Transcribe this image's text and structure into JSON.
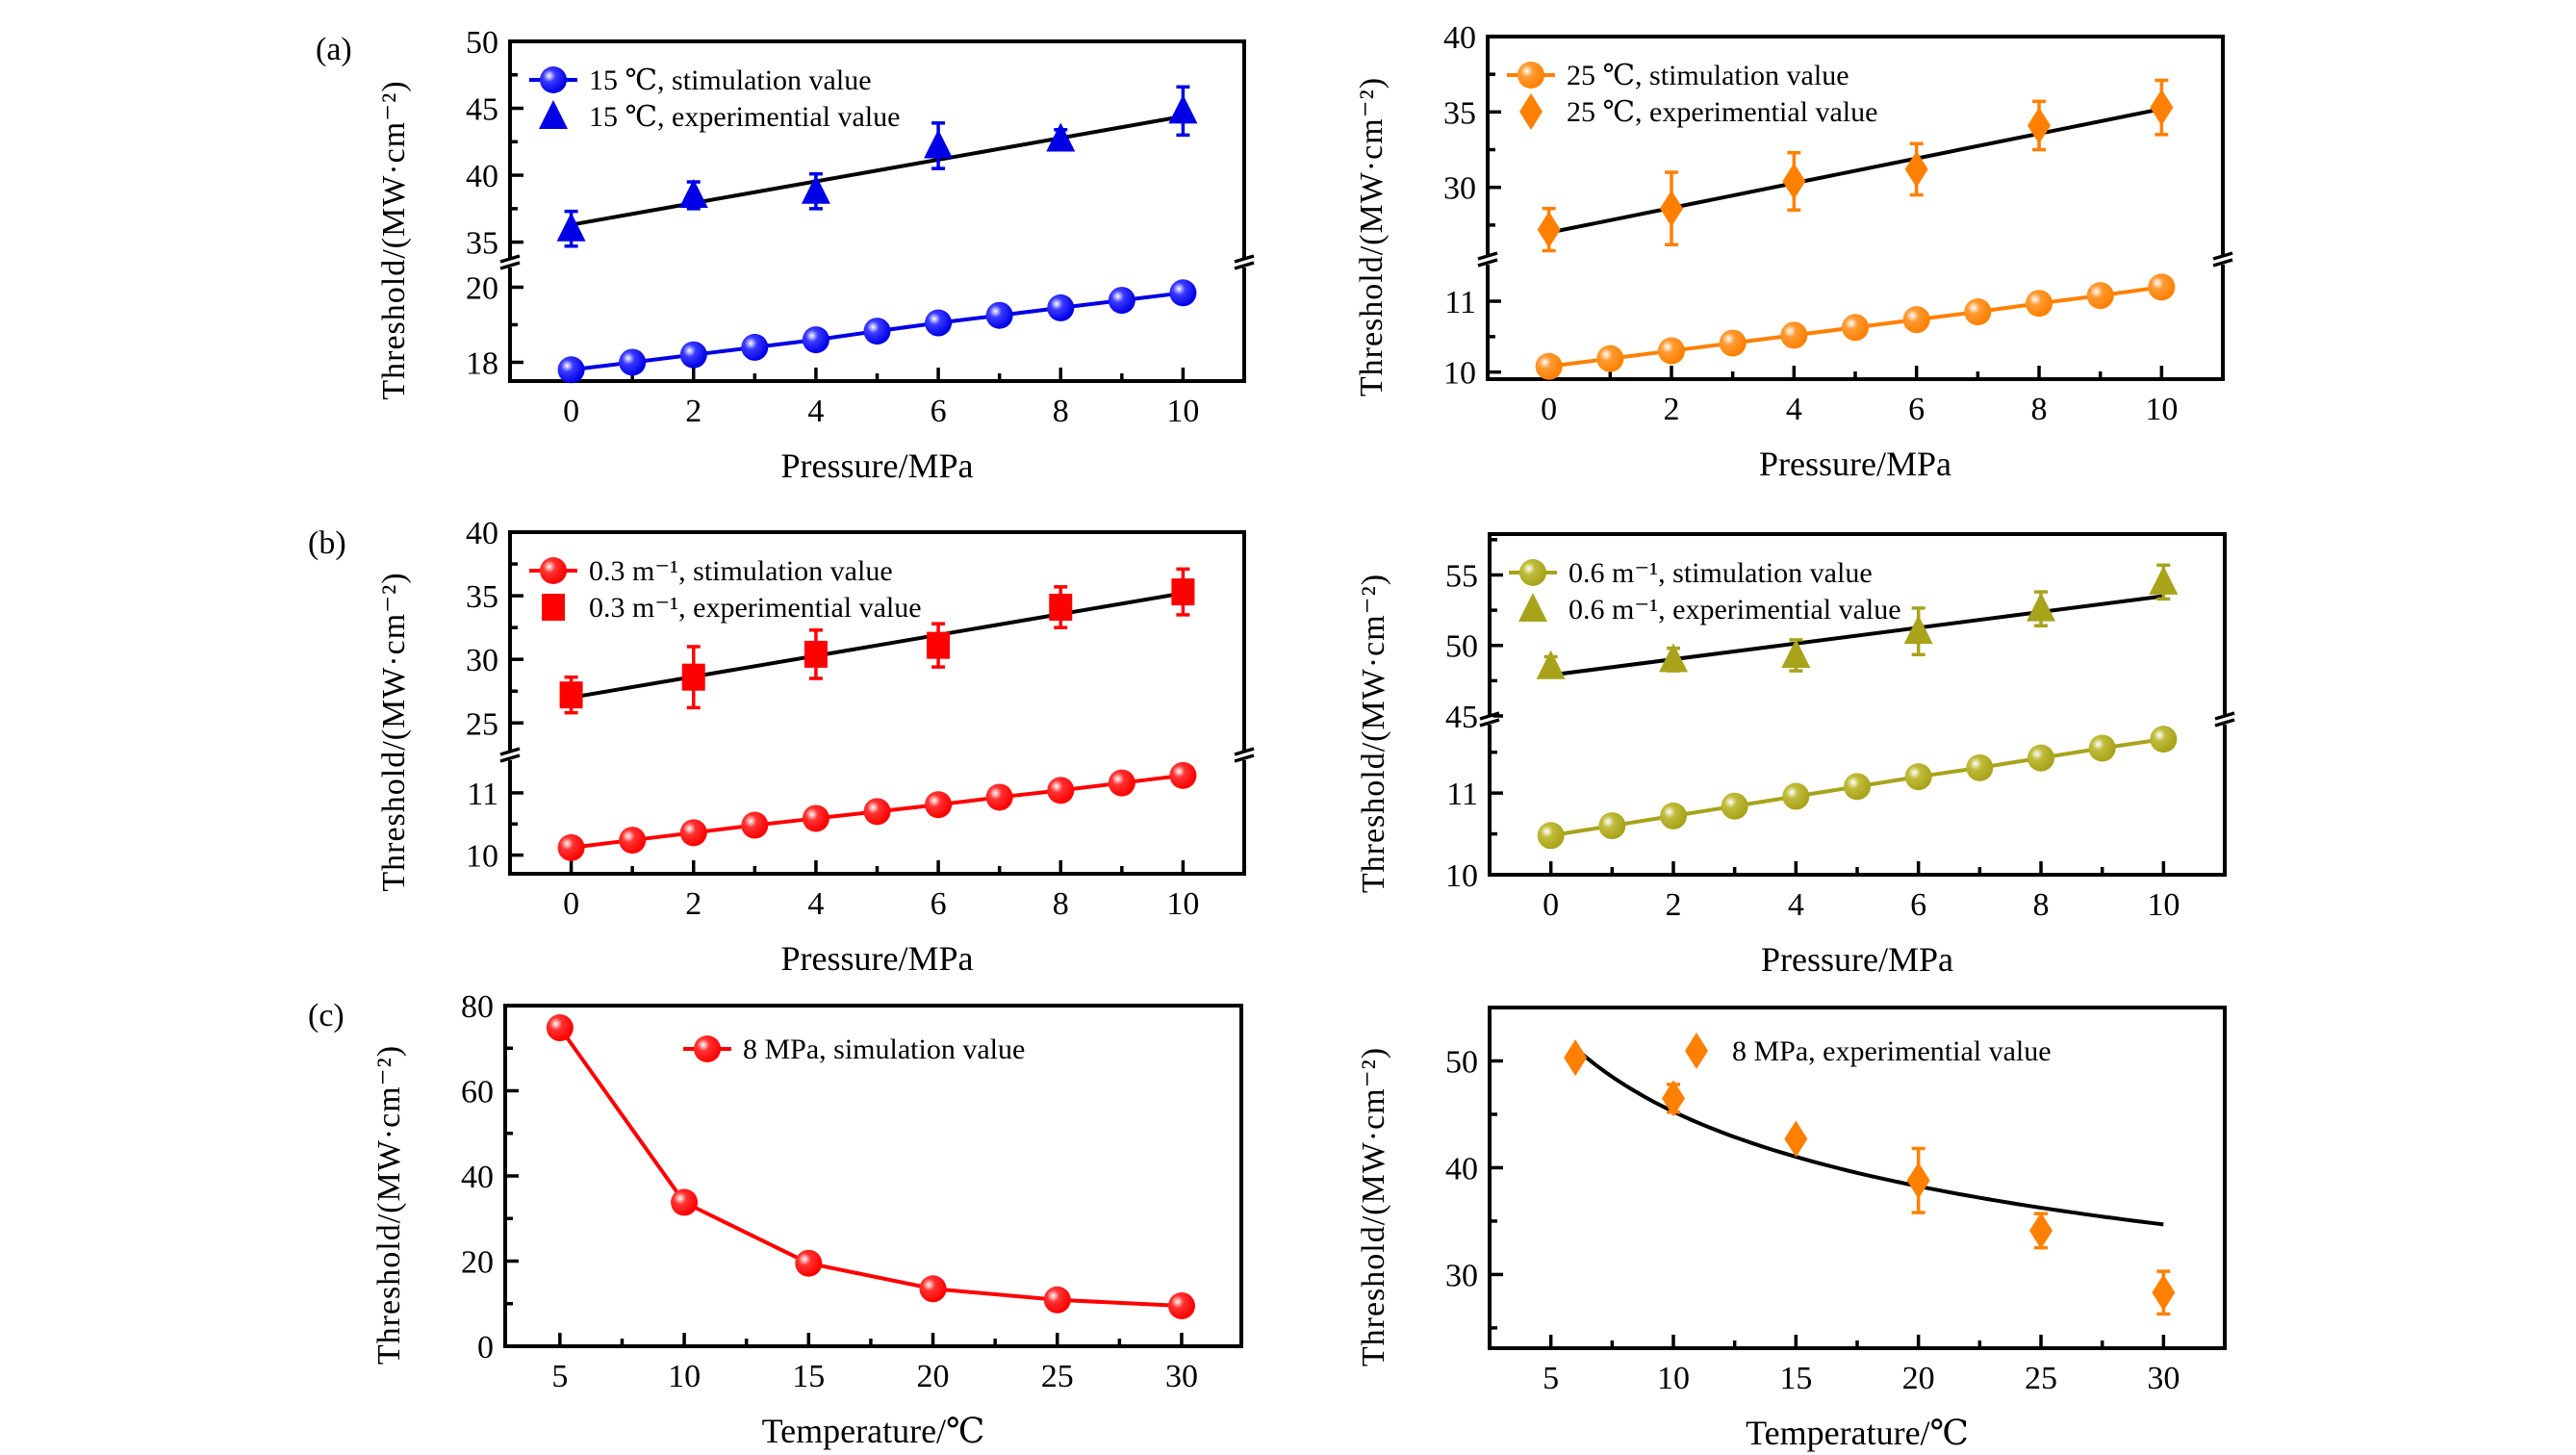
{
  "figure": {
    "panel_labels": [
      "(a)",
      "(b)",
      "(c)"
    ]
  },
  "chart_data": [
    {
      "id": "a-left",
      "panel": "(a)",
      "type": "line",
      "xlabel": "Pressure/MPa",
      "ylabel": "Threshold/(MW·cm⁻²)",
      "xlim": [
        -1,
        11
      ],
      "xticks": [
        0,
        2,
        4,
        6,
        8,
        10
      ],
      "xminor": [
        1,
        3,
        5,
        7,
        9
      ],
      "ybreak": true,
      "ylim_lower": [
        17.5,
        20.55
      ],
      "ylim_upper": [
        33.75,
        50
      ],
      "yticks_lower": [
        18,
        20
      ],
      "yminor_lower": [
        19
      ],
      "yticks_upper": [
        35,
        40,
        45,
        50
      ],
      "yminor_upper": [
        37.5,
        42.5,
        47.5
      ],
      "color": "#0000e6",
      "legend": [
        "15 ℃, stimulation value",
        "15 ℃, experimential value"
      ],
      "legend_position": "top-left",
      "series": [
        {
          "name": "15 ℃, stimulation value",
          "marker": "circle",
          "segment": "lower",
          "x": [
            0,
            1,
            2,
            3,
            4,
            5,
            6,
            7,
            8,
            9,
            10
          ],
          "y": [
            17.8,
            18.0,
            18.2,
            18.4,
            18.6,
            18.83,
            19.05,
            19.25,
            19.45,
            19.65,
            19.85
          ]
        },
        {
          "name": "15 ℃, experimential value",
          "marker": "triangle",
          "segment": "upper",
          "x": [
            0,
            2,
            4,
            6,
            8,
            10
          ],
          "y": [
            36.0,
            38.5,
            38.8,
            42.2,
            42.7,
            44.8
          ],
          "err": [
            1.3,
            1.0,
            1.3,
            1.7,
            0.7,
            1.8
          ]
        }
      ],
      "fit": {
        "x": [
          0,
          10
        ],
        "y": [
          36.3,
          44.4
        ]
      }
    },
    {
      "id": "a-right",
      "panel": "(a)",
      "type": "line",
      "xlabel": "Pressure/MPa",
      "ylabel": "Threshold/(MW·cm⁻²)",
      "xlim": [
        -1,
        11
      ],
      "xticks": [
        0,
        2,
        4,
        6,
        8,
        10
      ],
      "xminor": [
        1,
        3,
        5,
        7,
        9
      ],
      "ybreak": true,
      "ylim_lower": [
        9.9,
        11.53
      ],
      "ylim_upper": [
        25.45,
        40
      ],
      "yticks_lower": [
        10,
        11
      ],
      "yminor_lower": [
        10.5
      ],
      "yticks_upper": [
        30,
        35,
        40
      ],
      "yminor_upper": [
        27.5,
        32.5,
        37.5
      ],
      "color": "#ff8000",
      "legend": [
        "25 ℃, stimulation value",
        "25 ℃, experimential value"
      ],
      "legend_position": "top-left",
      "series": [
        {
          "name": "25 ℃, stimulation value",
          "marker": "circle",
          "segment": "lower",
          "x": [
            0,
            1,
            2,
            3,
            4,
            5,
            6,
            7,
            8,
            9,
            10
          ],
          "y": [
            10.08,
            10.19,
            10.3,
            10.41,
            10.52,
            10.63,
            10.74,
            10.85,
            10.97,
            11.08,
            11.2
          ]
        },
        {
          "name": "25 ℃, experimential value",
          "marker": "diamond",
          "segment": "upper",
          "x": [
            0,
            2,
            4,
            6,
            8,
            10
          ],
          "y": [
            27.2,
            28.6,
            30.4,
            31.2,
            34.1,
            35.3
          ],
          "err": [
            1.4,
            2.4,
            1.9,
            1.7,
            1.6,
            1.8
          ]
        }
      ],
      "fit": {
        "x": [
          0,
          10
        ],
        "y": [
          27.0,
          35.2
        ]
      }
    },
    {
      "id": "b-left",
      "panel": "(b)",
      "type": "line",
      "xlabel": "Pressure/MPa",
      "ylabel": "Threshold/(MW·cm⁻²)",
      "xlim": [
        -1,
        11
      ],
      "xticks": [
        0,
        2,
        4,
        6,
        8,
        10
      ],
      "xminor": [
        1,
        3,
        5,
        7,
        9
      ],
      "ybreak": true,
      "ylim_lower": [
        9.7,
        11.54
      ],
      "ylim_upper": [
        22.75,
        40
      ],
      "yticks_lower": [
        10,
        11
      ],
      "yminor_lower": [
        10.5
      ],
      "yticks_upper": [
        25,
        30,
        35,
        40
      ],
      "yminor_upper": [
        27.5,
        32.5,
        37.5
      ],
      "color": "#ff0000",
      "legend": [
        "0.3 m⁻¹, stimulation value",
        "0.3 m⁻¹, experimential value"
      ],
      "legend_position": "top-left",
      "series": [
        {
          "name": "0.3 m⁻¹, stimulation value",
          "marker": "circle",
          "segment": "lower",
          "x": [
            0,
            1,
            2,
            3,
            4,
            5,
            6,
            7,
            8,
            9,
            10
          ],
          "y": [
            10.12,
            10.24,
            10.36,
            10.48,
            10.59,
            10.7,
            10.81,
            10.93,
            11.04,
            11.16,
            11.28
          ]
        },
        {
          "name": "0.3 m⁻¹, experimential value",
          "marker": "square",
          "segment": "upper",
          "x": [
            0,
            2,
            4,
            6,
            8,
            10
          ],
          "y": [
            27.2,
            28.6,
            30.4,
            31.1,
            34.1,
            35.3
          ],
          "err": [
            1.4,
            2.4,
            1.9,
            1.7,
            1.6,
            1.8
          ]
        }
      ],
      "fit": {
        "x": [
          0,
          10
        ],
        "y": [
          27.0,
          35.2
        ]
      }
    },
    {
      "id": "b-right",
      "panel": "(b)",
      "type": "line",
      "xlabel": "Pressure/MPa",
      "ylabel": "Threshold/(MW·cm⁻²)",
      "xlim": [
        -1,
        11
      ],
      "xticks": [
        0,
        2,
        4,
        6,
        8,
        10
      ],
      "xminor": [
        1,
        3,
        5,
        7,
        9
      ],
      "ybreak": true,
      "ylim_lower": [
        10,
        11.85
      ],
      "ylim_upper": [
        45,
        57.9
      ],
      "yticks_lower": [
        10,
        11
      ],
      "yminor_lower": [
        10.5,
        11.5
      ],
      "yticks_upper": [
        45,
        50,
        55
      ],
      "yminor_upper": [
        47.5,
        52.5,
        57.5
      ],
      "color": "#a8a31a",
      "legend": [
        "0.6 m⁻¹, stimulation value",
        "0.6 m⁻¹, experimential value"
      ],
      "legend_position": "top-left",
      "series": [
        {
          "name": "0.6 m⁻¹, stimulation value",
          "marker": "circle",
          "segment": "lower",
          "x": [
            0,
            1,
            2,
            3,
            4,
            5,
            6,
            7,
            8,
            9,
            10
          ],
          "y": [
            10.48,
            10.6,
            10.72,
            10.84,
            10.96,
            11.08,
            11.2,
            11.31,
            11.43,
            11.55,
            11.66
          ]
        },
        {
          "name": "0.6 m⁻¹, experimential value",
          "marker": "triangle",
          "segment": "upper",
          "x": [
            0,
            2,
            4,
            6,
            8,
            10
          ],
          "y": [
            48.5,
            49.0,
            49.3,
            51.0,
            52.6,
            54.5
          ],
          "err": [
            0.7,
            0.8,
            1.1,
            1.65,
            1.2,
            1.2
          ]
        }
      ],
      "fit": {
        "x": [
          0,
          10
        ],
        "y": [
          47.9,
          53.5
        ]
      }
    },
    {
      "id": "c-left",
      "panel": "(c)",
      "type": "line",
      "xlabel": "Temperature/℃",
      "ylabel": "Threshold/(MW·cm⁻²)",
      "xlim": [
        2.8,
        32.4
      ],
      "xticks": [
        5,
        10,
        15,
        20,
        25,
        30
      ],
      "xminor": [
        7.5,
        12.5,
        17.5,
        22.5,
        27.5
      ],
      "ybreak": false,
      "ylim": [
        0,
        80
      ],
      "yticks": [
        0,
        20,
        40,
        60,
        80
      ],
      "yminor": [
        10,
        30,
        50,
        70
      ],
      "color": "#ff0000",
      "legend": [
        "8 MPa, simulation value"
      ],
      "legend_position": "top-right",
      "series": [
        {
          "name": "8 MPa, simulation value",
          "marker": "circle",
          "x": [
            5,
            10,
            15,
            20,
            25,
            30
          ],
          "y": [
            74.8,
            33.8,
            19.5,
            13.5,
            10.9,
            9.5
          ]
        }
      ]
    },
    {
      "id": "c-right",
      "panel": "(c)",
      "type": "scatter",
      "xlabel": "Temperature/℃",
      "ylabel": "Threshold/(MW·cm⁻²)",
      "xlim": [
        2.5,
        32.5
      ],
      "xticks": [
        5,
        10,
        15,
        20,
        25,
        30
      ],
      "xminor": [
        7.5,
        12.5,
        17.5,
        22.5,
        27.5
      ],
      "ybreak": false,
      "ylim": [
        23.1,
        55
      ],
      "yticks": [
        30,
        40,
        50
      ],
      "yminor": [
        25,
        35,
        45
      ],
      "color": "#ff8000",
      "legend": [
        "8 MPa, experimential value"
      ],
      "legend_position": "top-right",
      "series": [
        {
          "name": "8 MPa, experimential value",
          "marker": "diamond",
          "x": [
            6,
            10,
            15,
            20,
            25,
            30
          ],
          "y": [
            50.3,
            46.5,
            42.7,
            38.8,
            34.1,
            28.3
          ],
          "err": [
            0.5,
            1.3,
            0.4,
            3.0,
            1.6,
            2.0
          ]
        }
      ],
      "fit": {
        "model": "power",
        "a": 79.0,
        "b": -0.242,
        "x_range": [
          6,
          30
        ]
      }
    }
  ]
}
